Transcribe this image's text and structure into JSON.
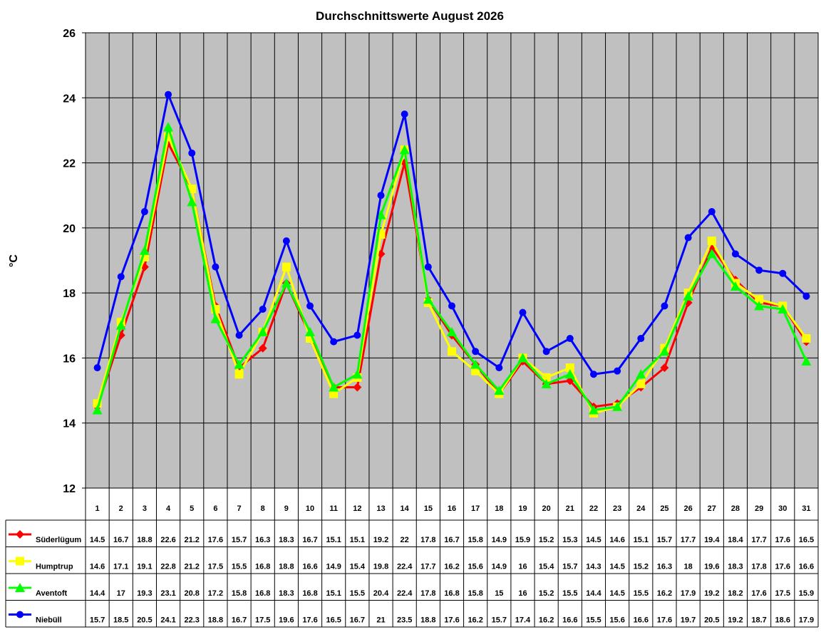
{
  "chart_data": {
    "type": "line",
    "title": "Durchschnittswerte August 2026",
    "y_label": "°C",
    "categories": [
      "1",
      "2",
      "3",
      "4",
      "5",
      "6",
      "7",
      "8",
      "9",
      "10",
      "11",
      "12",
      "13",
      "14",
      "15",
      "16",
      "17",
      "18",
      "19",
      "20",
      "21",
      "22",
      "23",
      "24",
      "25",
      "26",
      "27",
      "28",
      "29",
      "30",
      "31"
    ],
    "ylim": [
      12,
      26
    ],
    "yticks": [
      12,
      14,
      16,
      18,
      20,
      22,
      24,
      26
    ],
    "grid": true,
    "background": "#c0c0c0",
    "series": [
      {
        "name": "Süderlügum",
        "color": "#ff0000",
        "marker": "diamond",
        "values": [
          14.5,
          16.7,
          18.8,
          22.6,
          21.2,
          17.6,
          15.7,
          16.3,
          18.3,
          16.7,
          15.1,
          15.1,
          19.2,
          22,
          17.8,
          16.7,
          15.8,
          14.9,
          15.9,
          15.2,
          15.3,
          14.5,
          14.6,
          15.1,
          15.7,
          17.7,
          19.4,
          18.4,
          17.7,
          17.6,
          16.5
        ]
      },
      {
        "name": "Humptrup",
        "color": "#ffff00",
        "marker": "square",
        "values": [
          14.6,
          17.1,
          19.1,
          22.8,
          21.2,
          17.5,
          15.5,
          16.8,
          18.8,
          16.6,
          14.9,
          15.4,
          19.8,
          22.4,
          17.7,
          16.2,
          15.6,
          14.9,
          16,
          15.4,
          15.7,
          14.3,
          14.5,
          15.2,
          16.3,
          18,
          19.6,
          18.3,
          17.8,
          17.6,
          16.6
        ]
      },
      {
        "name": "Aventoft",
        "color": "#00ff00",
        "marker": "triangle",
        "values": [
          14.4,
          17,
          19.3,
          23.1,
          20.8,
          17.2,
          15.8,
          16.8,
          18.3,
          16.8,
          15.1,
          15.5,
          20.4,
          22.4,
          17.8,
          16.8,
          15.8,
          15,
          16,
          15.2,
          15.5,
          14.4,
          14.5,
          15.5,
          16.2,
          17.9,
          19.2,
          18.2,
          17.6,
          17.5,
          15.9
        ]
      },
      {
        "name": "Niebüll",
        "color": "#0000ff",
        "marker": "circle",
        "values": [
          15.7,
          18.5,
          20.5,
          24.1,
          22.3,
          18.8,
          16.7,
          17.5,
          19.6,
          17.6,
          16.5,
          16.7,
          21,
          23.5,
          18.8,
          17.6,
          16.2,
          15.7,
          17.4,
          16.2,
          16.6,
          15.5,
          15.6,
          16.6,
          17.6,
          19.7,
          20.5,
          19.2,
          18.7,
          18.6,
          17.9
        ]
      }
    ]
  }
}
